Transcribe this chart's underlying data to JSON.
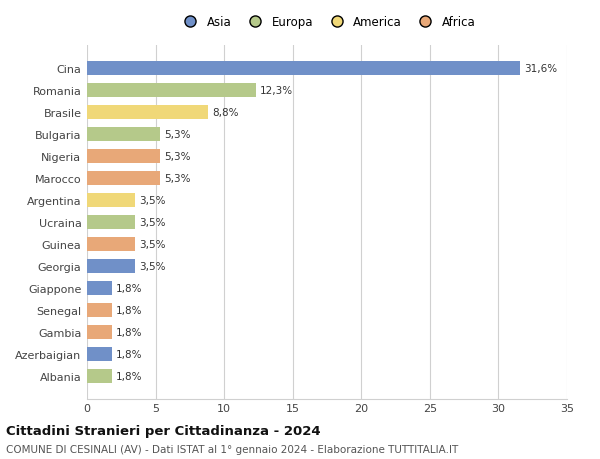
{
  "countries": [
    "Cina",
    "Romania",
    "Brasile",
    "Bulgaria",
    "Nigeria",
    "Marocco",
    "Argentina",
    "Ucraina",
    "Guinea",
    "Georgia",
    "Giappone",
    "Senegal",
    "Gambia",
    "Azerbaigian",
    "Albania"
  ],
  "values": [
    31.6,
    12.3,
    8.8,
    5.3,
    5.3,
    5.3,
    3.5,
    3.5,
    3.5,
    3.5,
    1.8,
    1.8,
    1.8,
    1.8,
    1.8
  ],
  "labels": [
    "31,6%",
    "12,3%",
    "8,8%",
    "5,3%",
    "5,3%",
    "5,3%",
    "3,5%",
    "3,5%",
    "3,5%",
    "3,5%",
    "1,8%",
    "1,8%",
    "1,8%",
    "1,8%",
    "1,8%"
  ],
  "colors": [
    "#7090c8",
    "#b5c98a",
    "#f0d878",
    "#b5c98a",
    "#e8a878",
    "#e8a878",
    "#f0d878",
    "#b5c98a",
    "#e8a878",
    "#7090c8",
    "#7090c8",
    "#e8a878",
    "#e8a878",
    "#7090c8",
    "#b5c98a"
  ],
  "legend": [
    {
      "label": "Asia",
      "color": "#7090c8"
    },
    {
      "label": "Europa",
      "color": "#b5c98a"
    },
    {
      "label": "America",
      "color": "#f0d878"
    },
    {
      "label": "Africa",
      "color": "#e8a878"
    }
  ],
  "xlim": [
    0,
    35
  ],
  "xticks": [
    0,
    5,
    10,
    15,
    20,
    25,
    30,
    35
  ],
  "title": "Cittadini Stranieri per Cittadinanza - 2024",
  "subtitle": "COMUNE DI CESINALI (AV) - Dati ISTAT al 1° gennaio 2024 - Elaborazione TUTTITALIA.IT",
  "bg_color": "#ffffff",
  "bar_height": 0.62,
  "grid_color": "#d0d0d0",
  "label_fontsize": 7.5,
  "ytick_fontsize": 8.0,
  "xtick_fontsize": 8.0,
  "legend_fontsize": 8.5,
  "title_fontsize": 9.5,
  "subtitle_fontsize": 7.5
}
